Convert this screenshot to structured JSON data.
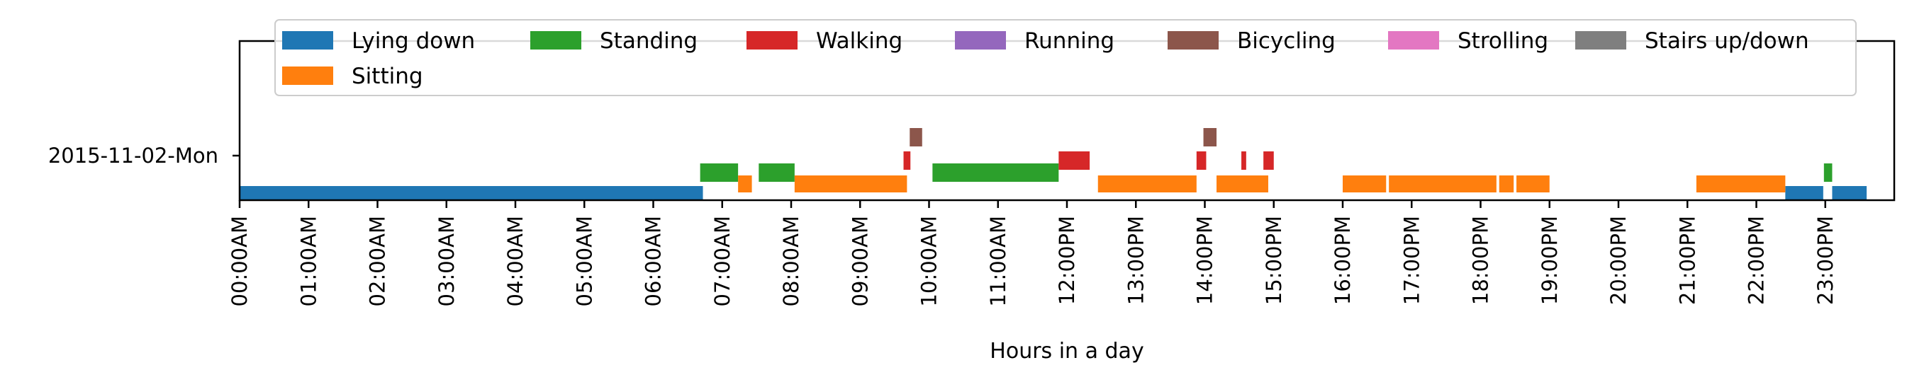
{
  "chart_data": {
    "type": "timeline",
    "xlabel": "Hours in a day",
    "ylabel": "",
    "x_unit": "hours",
    "xlim": [
      0,
      24
    ],
    "x_ticks": [
      {
        "hour": 0,
        "label": "00:00AM"
      },
      {
        "hour": 1,
        "label": "01:00AM"
      },
      {
        "hour": 2,
        "label": "02:00AM"
      },
      {
        "hour": 3,
        "label": "03:00AM"
      },
      {
        "hour": 4,
        "label": "04:00AM"
      },
      {
        "hour": 5,
        "label": "05:00AM"
      },
      {
        "hour": 6,
        "label": "06:00AM"
      },
      {
        "hour": 7,
        "label": "07:00AM"
      },
      {
        "hour": 8,
        "label": "08:00AM"
      },
      {
        "hour": 9,
        "label": "09:00AM"
      },
      {
        "hour": 10,
        "label": "10:00AM"
      },
      {
        "hour": 11,
        "label": "11:00AM"
      },
      {
        "hour": 12,
        "label": "12:00PM"
      },
      {
        "hour": 13,
        "label": "13:00PM"
      },
      {
        "hour": 14,
        "label": "14:00PM"
      },
      {
        "hour": 15,
        "label": "15:00PM"
      },
      {
        "hour": 16,
        "label": "16:00PM"
      },
      {
        "hour": 17,
        "label": "17:00PM"
      },
      {
        "hour": 18,
        "label": "18:00PM"
      },
      {
        "hour": 19,
        "label": "19:00PM"
      },
      {
        "hour": 20,
        "label": "20:00PM"
      },
      {
        "hour": 21,
        "label": "21:00PM"
      },
      {
        "hour": 22,
        "label": "22:00PM"
      },
      {
        "hour": 23,
        "label": "23:00PM"
      }
    ],
    "y_categories": [
      "2015-11-02-Mon"
    ],
    "legend_position": "top, 7 columns",
    "grid": false,
    "lane_order": [
      "Lying down",
      "Sitting",
      "Standing",
      "Walking",
      "Bicycling"
    ],
    "series": [
      {
        "name": "Lying down",
        "color": "#1f77b4",
        "intervals": [
          [
            0.0,
            6.72
          ],
          [
            22.42,
            22.97
          ],
          [
            23.1,
            23.6
          ]
        ]
      },
      {
        "name": "Standing",
        "color": "#2ca02c",
        "intervals": [
          [
            6.68,
            7.23
          ],
          [
            7.53,
            8.05
          ],
          [
            10.05,
            11.88
          ],
          [
            22.98,
            23.1
          ]
        ]
      },
      {
        "name": "Walking",
        "color": "#d62728",
        "intervals": [
          [
            9.63,
            9.73
          ],
          [
            11.88,
            12.33
          ],
          [
            13.88,
            14.02
          ],
          [
            14.53,
            14.6
          ],
          [
            14.85,
            15.0
          ]
        ]
      },
      {
        "name": "Running",
        "color": "#9467bd",
        "intervals": []
      },
      {
        "name": "Bicycling",
        "color": "#8c564b",
        "intervals": [
          [
            9.72,
            9.9
          ],
          [
            13.98,
            14.17
          ]
        ]
      },
      {
        "name": "Strolling",
        "color": "#e377c2",
        "intervals": []
      },
      {
        "name": "Stairs up/down",
        "color": "#7f7f7f",
        "intervals": []
      },
      {
        "name": "Sitting",
        "color": "#ff7f0e",
        "intervals": [
          [
            7.23,
            7.43
          ],
          [
            8.05,
            9.68
          ],
          [
            12.45,
            13.88
          ],
          [
            14.17,
            14.92
          ],
          [
            16.0,
            16.63
          ],
          [
            16.67,
            18.23
          ],
          [
            18.27,
            18.48
          ],
          [
            18.52,
            19.0
          ],
          [
            21.13,
            22.42
          ]
        ]
      }
    ]
  }
}
